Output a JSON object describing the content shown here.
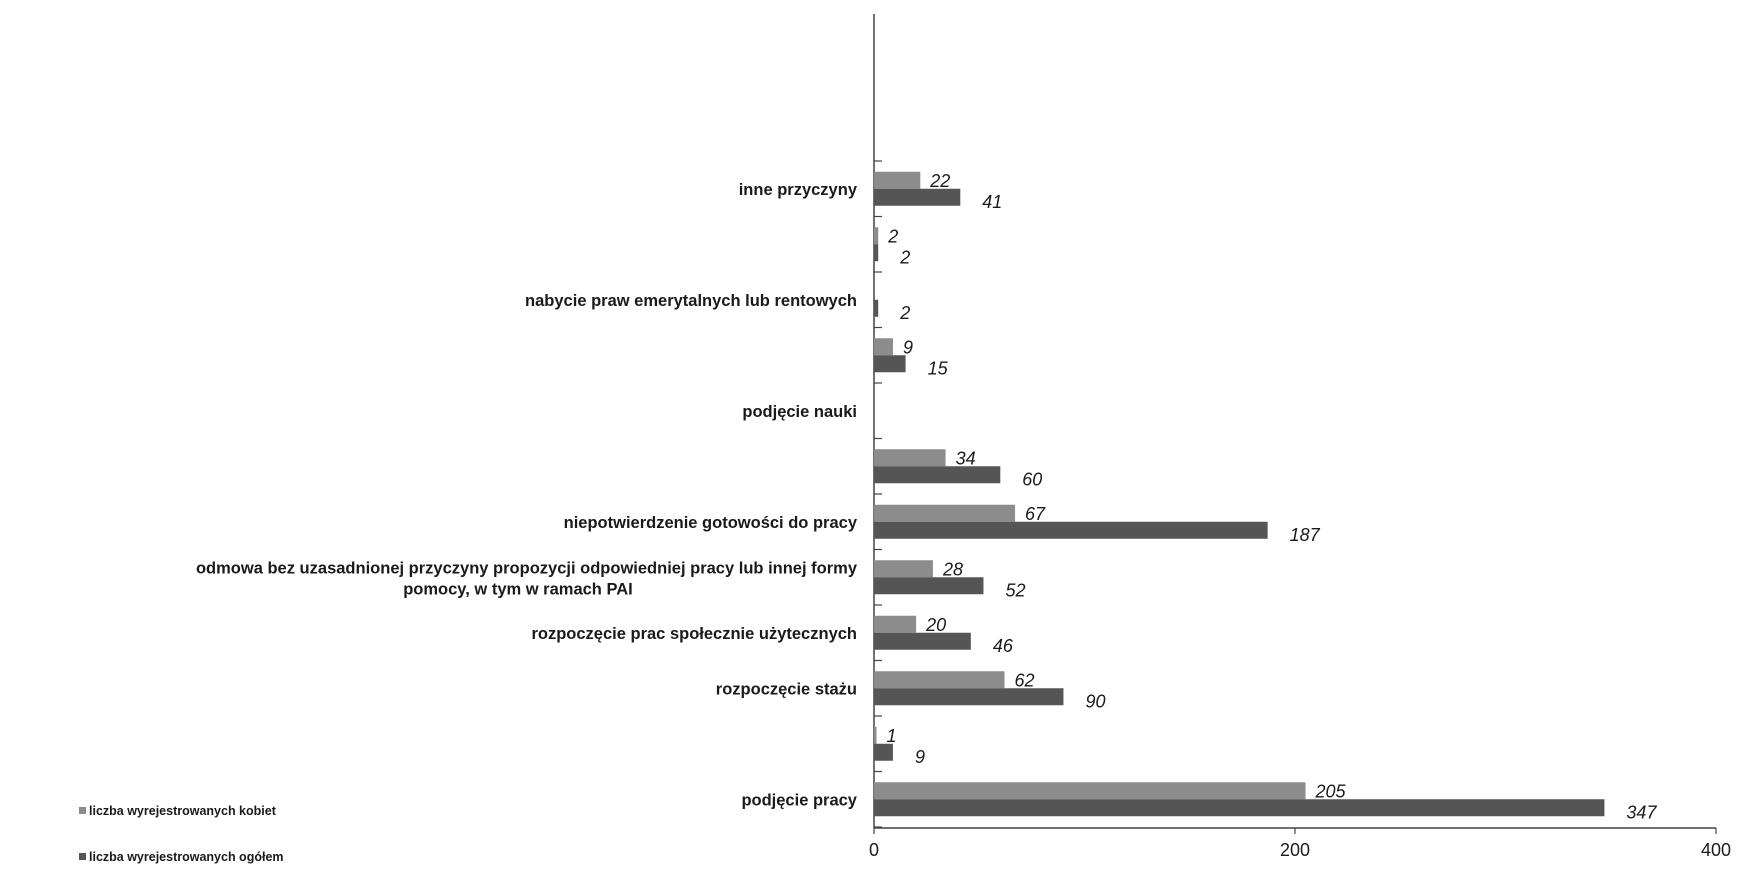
{
  "chart_data": {
    "type": "bar",
    "orientation": "horizontal",
    "categories": [
      "podjęcie pracy",
      "",
      "rozpoczęcie stażu",
      "rozpoczęcie prac społecznie użytecznych",
      "odmowa bez uzasadnionej przyczyny propozycji odpowiedniej pracy lub innej formy pomocy, w tym w ramach PAI",
      "niepotwierdzenie gotowości do pracy",
      "",
      "podjęcie nauki",
      "",
      "nabycie praw emerytalnych lub rentowych",
      "",
      "inne przyczyny"
    ],
    "series": [
      {
        "name": "liczba wyrejestrowanych kobiet",
        "color": "#8c8c8c",
        "values": [
          205,
          1,
          62,
          20,
          28,
          67,
          34,
          null,
          9,
          null,
          2,
          22
        ]
      },
      {
        "name": "liczba wyrejestrowanych ogółem",
        "color": "#555555",
        "values": [
          347,
          9,
          90,
          46,
          52,
          187,
          60,
          null,
          15,
          2,
          2,
          41
        ]
      }
    ],
    "xlim": [
      0,
      400
    ],
    "xticks": [
      "0",
      "200",
      "400"
    ],
    "legend_position": "bottom-left",
    "grid": false
  }
}
